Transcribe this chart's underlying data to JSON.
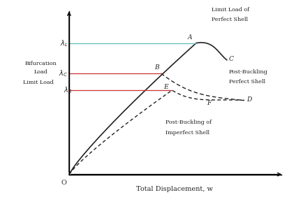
{
  "fig_width": 4.21,
  "fig_height": 2.89,
  "dpi": 100,
  "background_color": "#ffffff",
  "lambda_L": 0.78,
  "lambda_C": 0.6,
  "lambda_S": 0.5,
  "point_A": [
    0.58,
    0.78
  ],
  "point_B": [
    0.42,
    0.6
  ],
  "point_C": [
    0.72,
    0.68
  ],
  "point_D": [
    0.8,
    0.44
  ],
  "point_E": [
    0.47,
    0.5
  ],
  "point_F": [
    0.67,
    0.44
  ],
  "xlabel": "Total Displacement, w",
  "hline_color_L": "#5bbcbc",
  "hline_color_C": "#cc3333",
  "hline_color_S": "#cc3333",
  "curve_color": "#222222",
  "label_color": "#222222"
}
